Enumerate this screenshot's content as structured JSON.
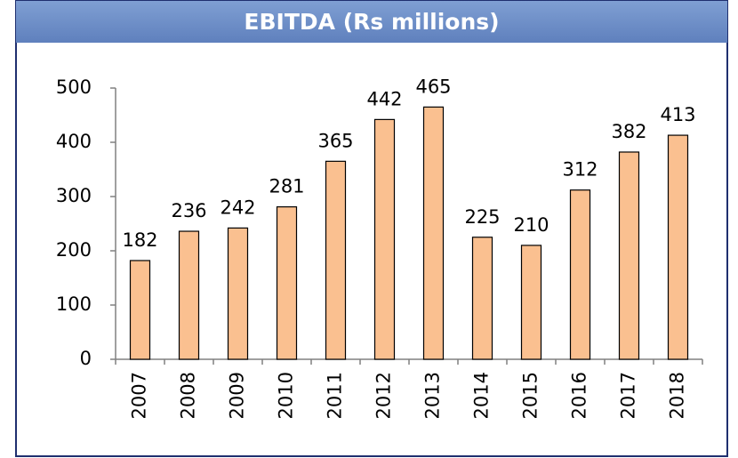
{
  "chart_data": {
    "type": "bar",
    "title": "EBITDA (Rs millions)",
    "categories": [
      "2007",
      "2008",
      "2009",
      "2010",
      "2011",
      "2012",
      "2013",
      "2014",
      "2015",
      "2016",
      "2017",
      "2018"
    ],
    "values": [
      182,
      236,
      242,
      281,
      365,
      442,
      465,
      225,
      210,
      312,
      382,
      413
    ],
    "color": "#fac090",
    "ylim": [
      0,
      500
    ],
    "yticks": [
      0,
      100,
      200,
      300,
      400,
      500
    ],
    "grid": false
  }
}
